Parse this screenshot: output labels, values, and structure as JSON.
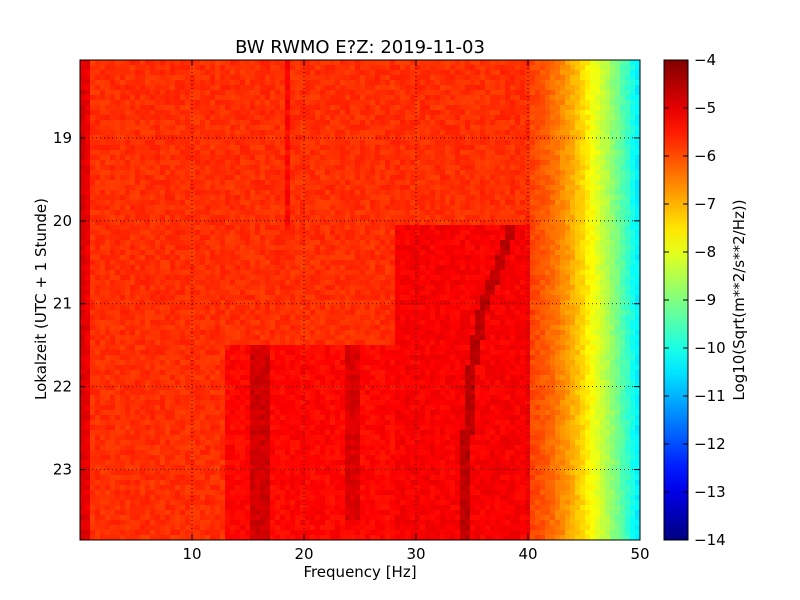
{
  "chart_data": {
    "type": "heatmap",
    "title": "BW RWMO E?Z: 2019-11-03",
    "xlabel": "Frequency [Hz]",
    "ylabel": "Lokalzeit (UTC + 1 Stunde)",
    "xlim": [
      0,
      50
    ],
    "ylim": [
      23.85,
      18.06
    ],
    "x_ticks": [
      10,
      20,
      30,
      40,
      50
    ],
    "y_ticks": [
      19,
      20,
      21,
      22,
      23
    ],
    "grid": true,
    "grid_style": "dotted",
    "colormap": "jet",
    "colorbar": {
      "label": "Log10(Sqrt(m**2/s**2/Hz))",
      "range": [
        -14,
        -4
      ],
      "ticks": [
        -4,
        -5,
        -6,
        -7,
        -8,
        -9,
        -10,
        -11,
        -12,
        -13,
        -14
      ]
    },
    "background_level": -5.7,
    "features": [
      {
        "name": "high-frequency rolloff",
        "x_from": 40,
        "x_to": 50,
        "value_from": -5.9,
        "value_to": -10.5
      },
      {
        "name": "low-frequency edge",
        "x": [
          0,
          1
        ],
        "value": -4.8
      },
      {
        "name": "elevated band after transition",
        "y_from": 20.08,
        "y_to": 23.85,
        "x_from": 28,
        "x_to": 40,
        "value": -5.2
      },
      {
        "name": "broad elevated block",
        "y_from": 21.5,
        "y_to": 23.85,
        "x_from": 13,
        "x_to": 28,
        "value": -5.3
      },
      {
        "name": "narrow line 18.5 Hz",
        "x": 18.5,
        "y_from": 18.06,
        "y_to": 20.1,
        "value": -5.3
      },
      {
        "name": "drifting line",
        "points": [
          [
            38.5,
            20.08
          ],
          [
            37.3,
            20.6
          ],
          [
            36.0,
            21.0
          ],
          [
            35.0,
            21.8
          ],
          [
            34.6,
            22.5
          ],
          [
            34.5,
            23.85
          ]
        ],
        "value": -4.6
      },
      {
        "name": "band 15-17 Hz",
        "x_from": 15,
        "x_to": 17,
        "y_from": 21.5,
        "y_to": 23.85,
        "value": -4.8
      },
      {
        "name": "band 24 Hz",
        "x_from": 23.5,
        "x_to": 25,
        "y_from": 21.5,
        "y_to": 23.6,
        "value": -4.9
      }
    ]
  }
}
